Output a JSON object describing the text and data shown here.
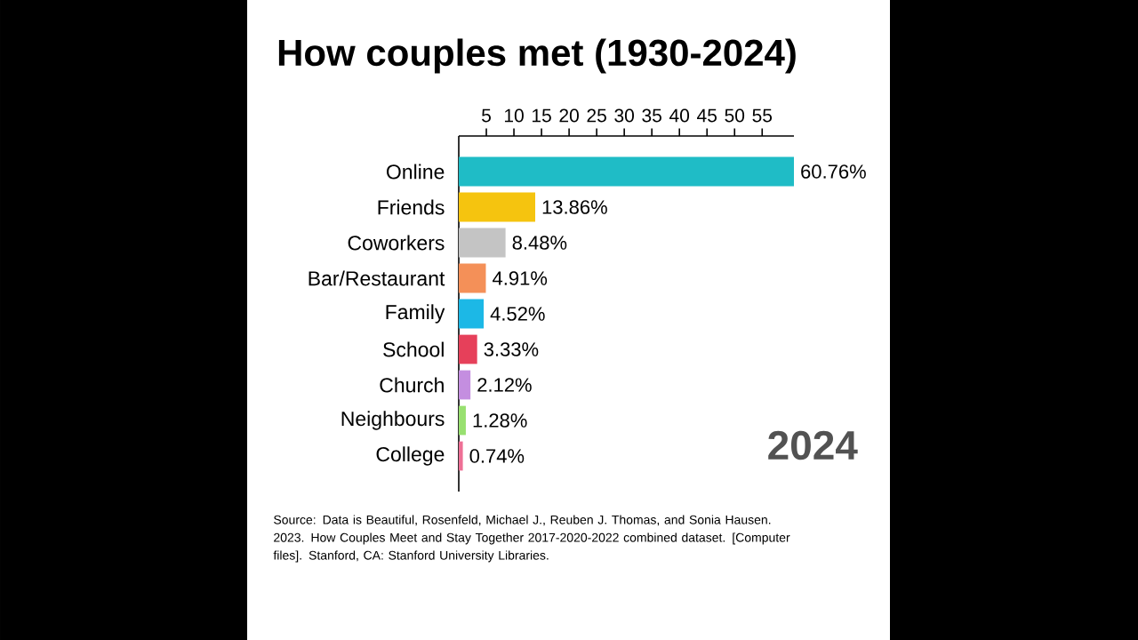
{
  "chart_data": {
    "type": "bar",
    "orientation": "horizontal",
    "title": "How couples met (1930-2024)",
    "categories": [
      "Online",
      "Friends",
      "Coworkers",
      "Bar/Restaurant",
      "Family",
      "School",
      "Church",
      "Neighbours",
      "College"
    ],
    "values": [
      60.76,
      13.86,
      8.48,
      4.91,
      4.52,
      3.33,
      2.12,
      1.28,
      0.74
    ],
    "value_labels": [
      "60.76%",
      "13.86%",
      "8.48%",
      "4.91%",
      "4.52%",
      "3.33%",
      "2.12%",
      "1.28%",
      "0.74%"
    ],
    "colors": [
      "#1fbcc6",
      "#f5c40f",
      "#c4c4c4",
      "#f49058",
      "#1cb8e6",
      "#e6405a",
      "#c48ee0",
      "#98e070",
      "#ee7096"
    ],
    "xlim": [
      0,
      60.76
    ],
    "xticks": [
      5,
      10,
      15,
      20,
      25,
      30,
      35,
      40,
      45,
      50,
      55
    ],
    "annotations": [
      "2024",
      "Source: Data is Beautiful, Rosenfeld, Michael J., Reuben J. Thomas, and Sonia Hausen. 2023. How Couples Meet and Stay Together 2017-2020-2022 combined dataset. [Computer files]. Stanford, CA: Stanford University Libraries."
    ]
  }
}
